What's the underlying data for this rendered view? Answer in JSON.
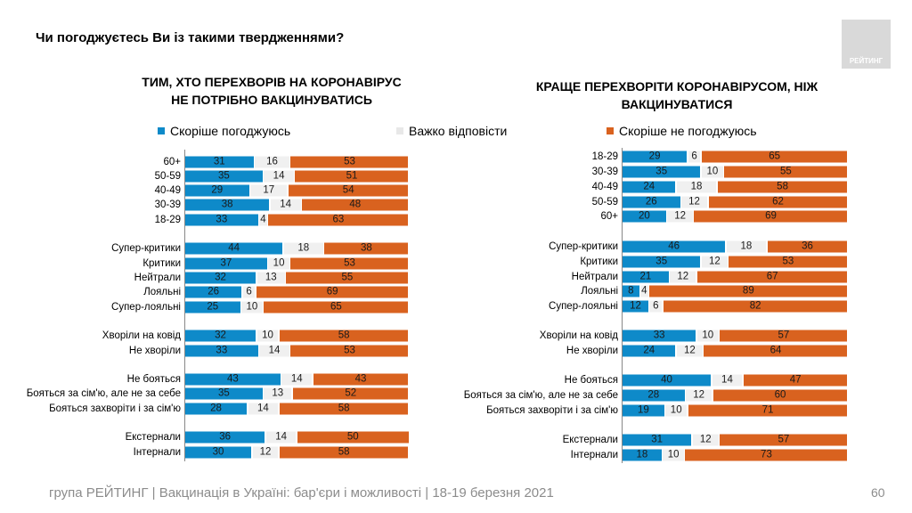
{
  "question": "Чи погоджуєтесь Ви із такими твердженнями?",
  "logo_text": "РЕЙТИНГ",
  "footer": "група РЕЙТИНГ | Вакцинація в Україні: бар'єри і можливості | 18-19 березня 2021",
  "page_number": "60",
  "colors": {
    "agree": "#0e8ac9",
    "hard": "#f0f0f0",
    "disagree": "#d9621f"
  },
  "legend": [
    "Скоріше погоджуюсь",
    "Важко відповісти",
    "Скоріше не погоджуюсь"
  ],
  "chart_data": [
    {
      "type": "bar",
      "stacked": true,
      "orientation": "horizontal",
      "title_lines": [
        "ТИМ, ХТО ПЕРЕХВОРІВ НА КОРОНАВІРУС",
        "НЕ ПОТРІБНО ВАКЦИНУВАТИСЬ"
      ],
      "series_names": [
        "Скоріше погоджуюсь",
        "Важко відповісти",
        "Скоріше не погоджуюсь"
      ],
      "groups": [
        [
          [
            "60+",
            31,
            16,
            53
          ],
          [
            "50-59",
            35,
            14,
            51
          ],
          [
            "40-49",
            29,
            17,
            54
          ],
          [
            "30-39",
            38,
            14,
            48
          ],
          [
            "18-29",
            33,
            4,
            63
          ]
        ],
        [
          [
            "Супер-критики",
            44,
            18,
            38
          ],
          [
            "Критики",
            37,
            10,
            53
          ],
          [
            "Нейтрали",
            32,
            13,
            55
          ],
          [
            "Лояльні",
            26,
            6,
            69
          ],
          [
            "Супер-лояльні",
            25,
            10,
            65
          ]
        ],
        [
          [
            "Хворіли на ковід",
            32,
            10,
            58
          ],
          [
            "Не хворіли",
            33,
            14,
            53
          ]
        ],
        [
          [
            "Не бояться",
            43,
            14,
            43
          ],
          [
            "Бояться за сім'ю, але не за себе",
            35,
            13,
            52
          ],
          [
            "Бояться захворіти і за сім'ю",
            28,
            14,
            58
          ]
        ],
        [
          [
            "Екстернали",
            36,
            14,
            50
          ],
          [
            "Інтернали",
            30,
            12,
            58
          ]
        ]
      ]
    },
    {
      "type": "bar",
      "stacked": true,
      "orientation": "horizontal",
      "title_lines": [
        "КРАЩЕ ПЕРЕХВОРІТИ КОРОНАВІРУСОМ, НІЖ",
        "ВАКЦИНУВАТИСЯ"
      ],
      "series_names": [
        "Скоріше погоджуюсь",
        "Важко відповісти",
        "Скоріше не погоджуюсь"
      ],
      "groups": [
        [
          [
            "18-29",
            29,
            6,
            65
          ],
          [
            "30-39",
            35,
            10,
            55
          ],
          [
            "40-49",
            24,
            18,
            58
          ],
          [
            "50-59",
            26,
            12,
            62
          ],
          [
            "60+",
            20,
            12,
            69
          ]
        ],
        [
          [
            "Супер-критики",
            46,
            18,
            36
          ],
          [
            "Критики",
            35,
            12,
            53
          ],
          [
            "Нейтрали",
            21,
            12,
            67
          ],
          [
            "Лояльні",
            8,
            4,
            89
          ],
          [
            "Супер-лояльні",
            12,
            6,
            82
          ]
        ],
        [
          [
            "Хворіли на ковід",
            33,
            10,
            57
          ],
          [
            "Не хворіли",
            24,
            12,
            64
          ]
        ],
        [
          [
            "Не бояться",
            40,
            14,
            47
          ],
          [
            "Бояться за сім'ю, але не за себе",
            28,
            12,
            60
          ],
          [
            "Бояться захворіти і за сім'ю",
            19,
            10,
            71
          ]
        ],
        [
          [
            "Екстернали",
            31,
            12,
            57
          ],
          [
            "Інтернали",
            18,
            10,
            73
          ]
        ]
      ]
    }
  ]
}
